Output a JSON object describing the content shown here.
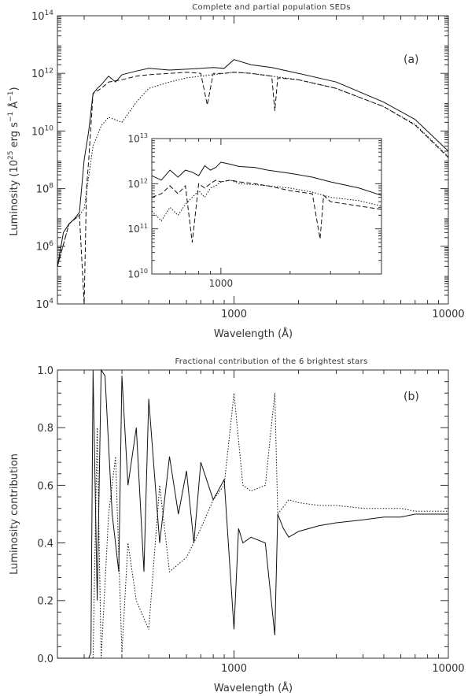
{
  "chart_data": [
    {
      "type": "line",
      "title": "Complete and partial population SEDs",
      "panel_label": "(a)",
      "xlabel": "Wavelength (Å)",
      "ylabel_main": "Luminosity (10",
      "ylabel_exp1": "25",
      "ylabel_mid": " erg s",
      "ylabel_exp2": "−1",
      "ylabel_mid2": " Å",
      "ylabel_exp3": "−1",
      "ylabel_end": ")",
      "xscale": "log",
      "yscale": "log",
      "xlim": [
        150,
        10000
      ],
      "ylim": [
        10000,
        100000000000000
      ],
      "x_ticks": [
        {
          "value": 1000,
          "label": "1000"
        },
        {
          "value": 10000,
          "label": "10000"
        }
      ],
      "y_ticks": [
        {
          "value": 10000,
          "base": "10",
          "exp": "4"
        },
        {
          "value": 1000000,
          "base": "10",
          "exp": "6"
        },
        {
          "value": 100000000,
          "base": "10",
          "exp": "8"
        },
        {
          "value": 10000000000,
          "base": "10",
          "exp": "10"
        },
        {
          "value": 1000000000000,
          "base": "10",
          "exp": "12"
        },
        {
          "value": 100000000000000,
          "base": "10",
          "exp": "14"
        }
      ],
      "series": [
        {
          "style": "solid",
          "x": [
            150,
            160,
            170,
            180,
            190,
            200,
            210,
            220,
            230,
            240,
            260,
            280,
            300,
            350,
            400,
            500,
            600,
            700,
            800,
            900,
            1000,
            1200,
            1500,
            2000,
            3000,
            5000,
            7000,
            10000
          ],
          "y": [
            200000.0,
            3000000.0,
            6000000.0,
            9000000.0,
            15000000.0,
            1000000000.0,
            10000000000.0,
            200000000000.0,
            300000000000.0,
            400000000000.0,
            800000000000.0,
            500000000000.0,
            900000000000.0,
            1200000000000.0,
            1500000000000.0,
            1300000000000.0,
            1400000000000.0,
            1500000000000.0,
            1600000000000.0,
            1500000000000.0,
            3000000000000.0,
            2000000000000.0,
            1600000000000.0,
            1000000000000.0,
            500000000000.0,
            100000000000.0,
            25000000000.0,
            2000000000.0
          ]
        },
        {
          "style": "dashed",
          "x": [
            150,
            170,
            190,
            200,
            205,
            210,
            220,
            240,
            260,
            300,
            350,
            400,
            500,
            600,
            700,
            750,
            800,
            900,
            1000,
            1200,
            1500,
            1550,
            1600,
            2000,
            3000,
            5000,
            7000,
            10000
          ],
          "y": [
            200000.0,
            6000000.0,
            12000000.0,
            10000.0,
            100000000.0,
            1000000000.0,
            200000000000.0,
            300000000000.0,
            500000000000.0,
            600000000000.0,
            800000000000.0,
            900000000000.0,
            1000000000000.0,
            1100000000000.0,
            1000000000000.0,
            80000000000.0,
            1000000000000.0,
            1000000000000.0,
            1100000000000.0,
            1000000000000.0,
            800000000000.0,
            50000000000.0,
            700000000000.0,
            600000000000.0,
            300000000000.0,
            70000000000.0,
            16000000000.0,
            1200000000.0
          ]
        },
        {
          "style": "dotted",
          "x": [
            150,
            170,
            190,
            200,
            220,
            240,
            260,
            300,
            350,
            400,
            500,
            600,
            700,
            800,
            900,
            1000,
            1200,
            1500,
            2000,
            3000,
            5000,
            7000,
            10000
          ],
          "y": [
            200000.0,
            6000000.0,
            12000000.0,
            20000000.0,
            3000000000.0,
            15000000000.0,
            30000000000.0,
            20000000000.0,
            100000000000.0,
            300000000000.0,
            500000000000.0,
            700000000000.0,
            800000000000.0,
            900000000000.0,
            1000000000000.0,
            1100000000000.0,
            1000000000000.0,
            800000000000.0,
            600000000000.0,
            300000000000.0,
            70000000000.0,
            17000000000.0,
            1300000000.0
          ]
        }
      ]
    },
    {
      "type": "line",
      "inset": true,
      "xscale": "log",
      "yscale": "log",
      "xlim": [
        500,
        5000
      ],
      "ylim": [
        10000000000,
        10000000000000
      ],
      "x_ticks": [
        {
          "value": 1000,
          "label": "1000"
        }
      ],
      "y_ticks": [
        {
          "value": 10000000000,
          "base": "10",
          "exp": "10"
        },
        {
          "value": 100000000000,
          "base": "10",
          "exp": "11"
        },
        {
          "value": 1000000000000,
          "base": "10",
          "exp": "12"
        },
        {
          "value": 10000000000000,
          "base": "10",
          "exp": "13"
        }
      ],
      "series": [
        {
          "style": "solid",
          "x": [
            500,
            550,
            600,
            650,
            700,
            750,
            800,
            850,
            900,
            950,
            1000,
            1100,
            1200,
            1400,
            1600,
            2000,
            2500,
            3000,
            4000,
            5000
          ],
          "y": [
            1500000000000.0,
            1200000000000.0,
            2000000000000.0,
            1400000000000.0,
            2000000000000.0,
            1800000000000.0,
            1500000000000.0,
            2500000000000.0,
            2000000000000.0,
            2300000000000.0,
            3000000000000.0,
            2700000000000.0,
            2400000000000.0,
            2300000000000.0,
            2000000000000.0,
            1700000000000.0,
            1400000000000.0,
            1100000000000.0,
            800000000000.0,
            550000000000.0
          ]
        },
        {
          "style": "dashed",
          "x": [
            500,
            550,
            600,
            650,
            700,
            750,
            800,
            850,
            900,
            950,
            1000,
            1100,
            1200,
            1400,
            1600,
            2000,
            2500,
            2700,
            2800,
            3000,
            4000,
            5000
          ],
          "y": [
            500000000000.0,
            600000000000.0,
            900000000000.0,
            600000000000.0,
            900000000000.0,
            50000000000.0,
            1000000000000.0,
            800000000000.0,
            1000000000000.0,
            1200000000000.0,
            1100000000000.0,
            1200000000000.0,
            1100000000000.0,
            1000000000000.0,
            900000000000.0,
            700000000000.0,
            600000000000.0,
            60000000000.0,
            550000000000.0,
            400000000000.0,
            320000000000.0,
            270000000000.0
          ]
        },
        {
          "style": "dotted",
          "x": [
            500,
            550,
            600,
            650,
            700,
            750,
            800,
            850,
            900,
            950,
            1000,
            1100,
            1200,
            1400,
            1600,
            2000,
            2500,
            3000,
            4000,
            5000
          ],
          "y": [
            250000000000.0,
            150000000000.0,
            300000000000.0,
            200000000000.0,
            350000000000.0,
            500000000000.0,
            700000000000.0,
            500000000000.0,
            800000000000.0,
            900000000000.0,
            1100000000000.0,
            1200000000000.0,
            1000000000000.0,
            950000000000.0,
            900000000000.0,
            800000000000.0,
            650000000000.0,
            500000000000.0,
            420000000000.0,
            320000000000.0
          ]
        }
      ]
    },
    {
      "type": "line",
      "title": "Fractional contribution of the 6 brightest stars",
      "panel_label": "(b)",
      "xlabel": "Wavelength (Å)",
      "ylabel": "Luminosity contribution",
      "xscale": "log",
      "yscale": "linear",
      "xlim": [
        150,
        10000
      ],
      "ylim": [
        0.0,
        1.0
      ],
      "x_ticks": [
        {
          "value": 1000,
          "label": "1000"
        },
        {
          "value": 10000,
          "label": "10000"
        }
      ],
      "y_ticks": [
        {
          "value": 0.0,
          "label": "0.0"
        },
        {
          "value": 0.2,
          "label": "0.2"
        },
        {
          "value": 0.4,
          "label": "0.4"
        },
        {
          "value": 0.6,
          "label": "0.6"
        },
        {
          "value": 0.8,
          "label": "0.8"
        },
        {
          "value": 1.0,
          "label": "1.0"
        }
      ],
      "series": [
        {
          "style": "solid",
          "x": [
            150,
            200,
            210,
            215,
            220,
            230,
            240,
            250,
            270,
            290,
            300,
            320,
            350,
            380,
            400,
            450,
            500,
            550,
            600,
            650,
            700,
            800,
            900,
            1000,
            1050,
            1100,
            1200,
            1400,
            1550,
            1600,
            1700,
            1800,
            2000,
            2500,
            3000,
            4000,
            5000,
            6000,
            7000,
            8000,
            10000
          ],
          "y": [
            0.0,
            0.0,
            0.0,
            0.02,
            1.0,
            0.2,
            1.0,
            0.98,
            0.5,
            0.3,
            0.98,
            0.6,
            0.8,
            0.3,
            0.9,
            0.4,
            0.7,
            0.5,
            0.65,
            0.4,
            0.68,
            0.55,
            0.62,
            0.1,
            0.45,
            0.4,
            0.42,
            0.4,
            0.08,
            0.5,
            0.45,
            0.42,
            0.44,
            0.46,
            0.47,
            0.48,
            0.49,
            0.49,
            0.5,
            0.5,
            0.5
          ]
        },
        {
          "style": "dotted",
          "x": [
            150,
            200,
            210,
            220,
            230,
            240,
            260,
            280,
            300,
            320,
            350,
            400,
            450,
            500,
            600,
            700,
            800,
            900,
            1000,
            1100,
            1200,
            1400,
            1550,
            1600,
            1800,
            2000,
            2500,
            3000,
            4000,
            5000,
            6000,
            7000,
            8000,
            10000
          ],
          "y": [
            0.0,
            0.0,
            0.0,
            0.0,
            0.8,
            0.0,
            0.5,
            0.7,
            0.02,
            0.4,
            0.2,
            0.1,
            0.6,
            0.3,
            0.35,
            0.45,
            0.55,
            0.6,
            0.92,
            0.6,
            0.58,
            0.6,
            0.92,
            0.5,
            0.55,
            0.54,
            0.53,
            0.53,
            0.52,
            0.52,
            0.52,
            0.51,
            0.51,
            0.51
          ]
        }
      ]
    }
  ]
}
